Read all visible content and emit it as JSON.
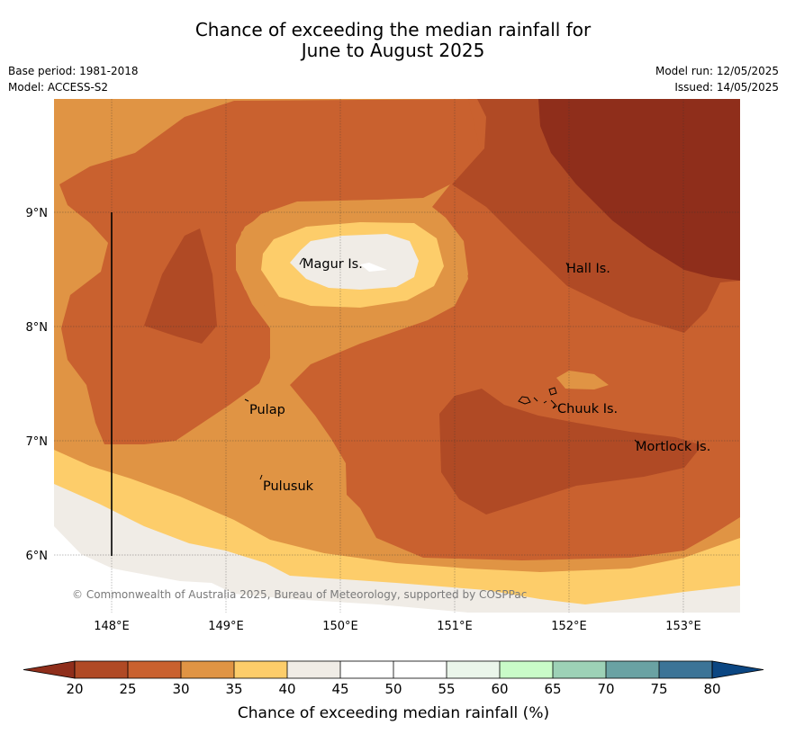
{
  "title": {
    "line1": "Chance of exceeding the median rainfall for",
    "line2": "June to August 2025"
  },
  "meta": {
    "base_period": "Base period: 1981-2018",
    "model": "Model: ACCESS-S2",
    "model_run": "Model run: 12/05/2025",
    "issued": "Issued: 14/05/2025"
  },
  "map": {
    "lat_labels": [
      "9°N",
      "8°N",
      "7°N",
      "6°N"
    ],
    "lon_labels": [
      "148°E",
      "149°E",
      "150°E",
      "151°E",
      "152°E",
      "153°E"
    ],
    "places": [
      {
        "key": "magur",
        "label": "Magur Is."
      },
      {
        "key": "hall",
        "label": "Hall Is."
      },
      {
        "key": "pulap",
        "label": "Pulap"
      },
      {
        "key": "chuuk",
        "label": "Chuuk Is."
      },
      {
        "key": "mortlock",
        "label": "Mortlock Is."
      },
      {
        "key": "pulusuk",
        "label": "Pulusuk"
      }
    ],
    "copyright": "© Commonwealth of Australia 2025, Bureau of Meteorology, supported by COSPPac"
  },
  "colorbar": {
    "label": "Chance of exceeding median rainfall (%)",
    "ticks": [
      "20",
      "25",
      "30",
      "35",
      "40",
      "45",
      "50",
      "55",
      "60",
      "65",
      "70",
      "75",
      "80"
    ],
    "colors": {
      "below20": "#8f2e1b",
      "c20_25": "#b04a25",
      "c25_30": "#c9612f",
      "c30_35": "#e09444",
      "c35_40": "#fdcd6a",
      "c40_45": "#f0ece6",
      "c45_50": "#ffffff",
      "c50_55": "#ffffff",
      "c55_60": "#eaf5ea",
      "c60_65": "#c9fbc8",
      "c65_70": "#9dd1b6",
      "c70_75": "#6aa2a3",
      "c75_80": "#3c7497",
      "above80": "#0b4682"
    }
  }
}
